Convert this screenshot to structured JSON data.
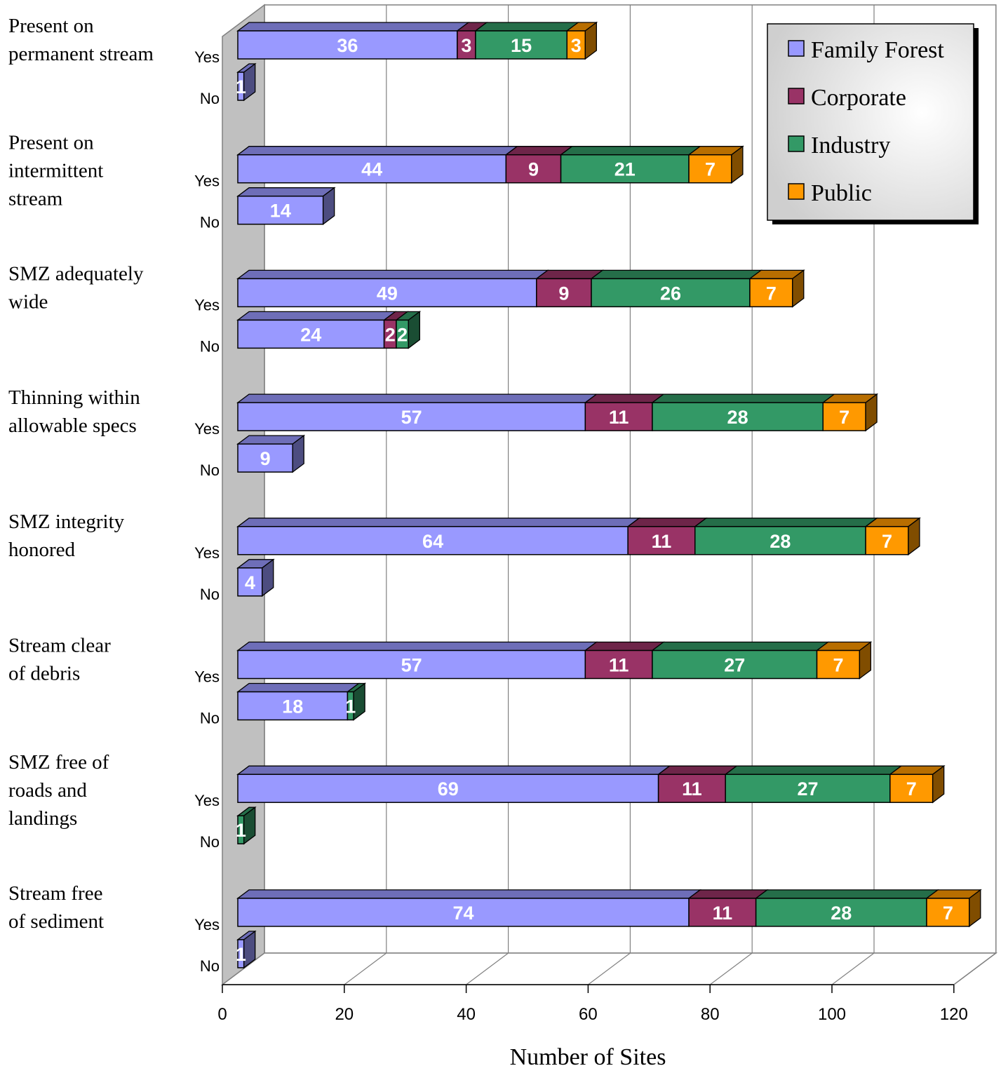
{
  "chart_data": {
    "type": "bar",
    "orientation": "horizontal",
    "stacked": true,
    "three_d": true,
    "xlabel": "Number of Sites",
    "xlim": [
      0,
      120
    ],
    "xticks": [
      "0",
      "20",
      "40",
      "60",
      "80",
      "100",
      "120"
    ],
    "grid": true,
    "legend_position": "top-right",
    "answers": [
      "Yes",
      "No"
    ],
    "series": [
      {
        "name": "Family Forest",
        "color": "#9999ff"
      },
      {
        "name": "Corporate",
        "color": "#993366"
      },
      {
        "name": "Industry",
        "color": "#339966"
      },
      {
        "name": "Public",
        "color": "#ff9900"
      }
    ],
    "groups": [
      {
        "label_lines": [
          "Present on",
          "permanent stream"
        ],
        "yes": [
          36,
          3,
          15,
          3
        ],
        "no": [
          1,
          0,
          0,
          0
        ]
      },
      {
        "label_lines": [
          "Present on",
          "intermittent",
          "stream"
        ],
        "yes": [
          44,
          9,
          21,
          7
        ],
        "no": [
          14,
          0,
          0,
          0
        ]
      },
      {
        "label_lines": [
          "SMZ adequately",
          "wide"
        ],
        "yes": [
          49,
          9,
          26,
          7
        ],
        "no": [
          24,
          2,
          2,
          0
        ]
      },
      {
        "label_lines": [
          "Thinning within",
          "allowable specs"
        ],
        "yes": [
          57,
          11,
          28,
          7
        ],
        "no": [
          9,
          0,
          0,
          0
        ]
      },
      {
        "label_lines": [
          "SMZ integrity",
          "honored"
        ],
        "yes": [
          64,
          11,
          28,
          7
        ],
        "no": [
          4,
          0,
          0,
          0
        ]
      },
      {
        "label_lines": [
          "Stream clear",
          "of debris"
        ],
        "yes": [
          57,
          11,
          27,
          7
        ],
        "no": [
          18,
          0,
          1,
          0
        ]
      },
      {
        "label_lines": [
          "SMZ free of",
          "roads and",
          "landings"
        ],
        "yes": [
          69,
          11,
          27,
          7
        ],
        "no": [
          0,
          0,
          1,
          0
        ]
      },
      {
        "label_lines": [
          "Stream free",
          "of sediment"
        ],
        "yes": [
          74,
          11,
          28,
          7
        ],
        "no": [
          1,
          0,
          0,
          0
        ]
      }
    ]
  }
}
